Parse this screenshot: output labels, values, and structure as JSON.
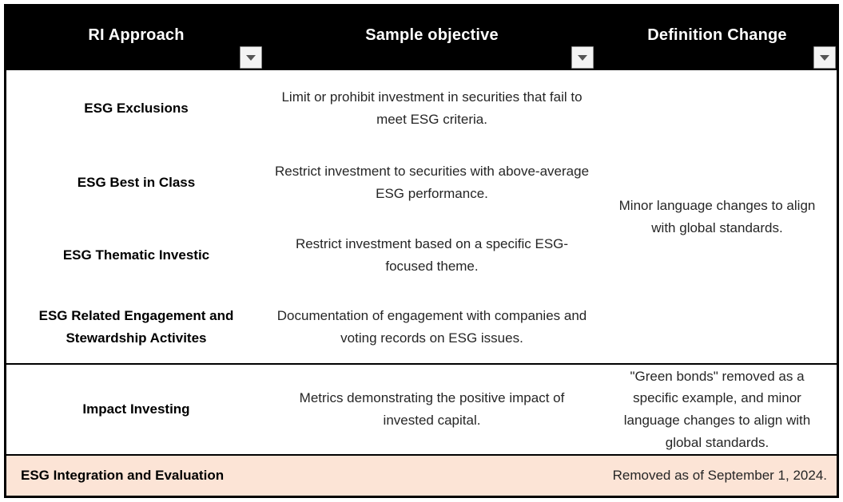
{
  "table": {
    "columns": [
      {
        "label": "RI Approach"
      },
      {
        "label": "Sample objective"
      },
      {
        "label": "Definition Change"
      }
    ],
    "icons": {
      "filter_dropdown": "chevron-down-triangle"
    },
    "rows": [
      {
        "approach": "ESG Exclusions",
        "objective": "Limit or prohibit investment in securities that fail to meet ESG criteria."
      },
      {
        "approach": "ESG Best in Class",
        "objective": "Restrict investment to securities with above-average ESG performance."
      },
      {
        "approach": "ESG Thematic Investic",
        "objective": "Restrict investment based on a specific ESG-focused theme."
      },
      {
        "approach": "ESG Related Engagement and Stewardship Activites",
        "objective": "Documentation of engagement with companies and voting records on ESG issues."
      },
      {
        "approach": "Impact Investing",
        "objective": "Metrics demonstrating the positive impact of invested capital.",
        "definition_change": "\"Green bonds\" removed as a specific example, and minor language changes to align with global standards."
      },
      {
        "approach": "ESG Integration and Evaluation",
        "objective": "",
        "definition_change": "Removed as of September 1, 2024."
      }
    ],
    "merged_definition_change": "Minor language changes to align with global standards.",
    "colors": {
      "header_bg": "#000000",
      "header_text": "#ffffff",
      "body_text": "#262626",
      "approach_text": "#000000",
      "highlight_row_bg": "#fce4d6",
      "border": "#000000",
      "filter_button_bg": "#f4f4f4",
      "filter_button_border": "#8c8c8c"
    }
  }
}
